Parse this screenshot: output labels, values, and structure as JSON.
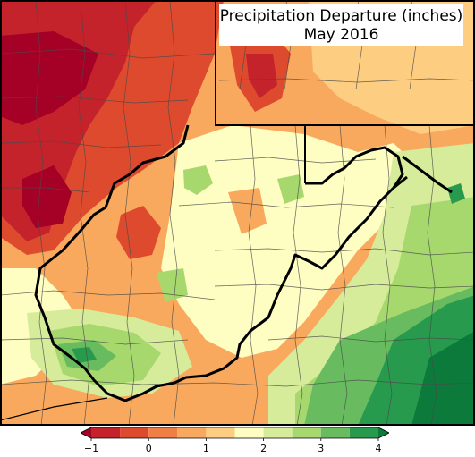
{
  "title": {
    "line1": "Precipitation Departure (inches)",
    "line2": "May 2016"
  },
  "legend": {
    "ticks": [
      {
        "value": -1,
        "label": "−1"
      },
      {
        "value": 0,
        "label": "0"
      },
      {
        "value": 1,
        "label": "1"
      },
      {
        "value": 2,
        "label": "2"
      },
      {
        "value": 3,
        "label": "3"
      },
      {
        "value": 4,
        "label": "4"
      }
    ],
    "bins": [
      {
        "range": [
          -1.5,
          -1.0
        ],
        "color": "#a50026"
      },
      {
        "range": [
          -1.0,
          -0.5
        ],
        "color": "#c4232b"
      },
      {
        "range": [
          -0.5,
          0.0
        ],
        "color": "#dd4a2e"
      },
      {
        "range": [
          0.0,
          0.5
        ],
        "color": "#f07f45"
      },
      {
        "range": [
          0.5,
          1.0
        ],
        "color": "#f9a95e"
      },
      {
        "range": [
          1.0,
          1.5
        ],
        "color": "#fdcd82"
      },
      {
        "range": [
          1.5,
          2.0
        ],
        "color": "#fefdc2"
      },
      {
        "range": [
          2.0,
          2.5
        ],
        "color": "#d6ec9b"
      },
      {
        "range": [
          2.5,
          3.0
        ],
        "color": "#a6d86e"
      },
      {
        "range": [
          3.0,
          3.5
        ],
        "color": "#68bc5f"
      },
      {
        "range": [
          3.5,
          4.0
        ],
        "color": "#279a4e"
      },
      {
        "range": [
          4.0,
          4.5
        ],
        "color": "#0b7a3b"
      }
    ],
    "extend": "both"
  },
  "colors": {
    "state_border": "#000000",
    "county_border": "#4a4a4a"
  }
}
